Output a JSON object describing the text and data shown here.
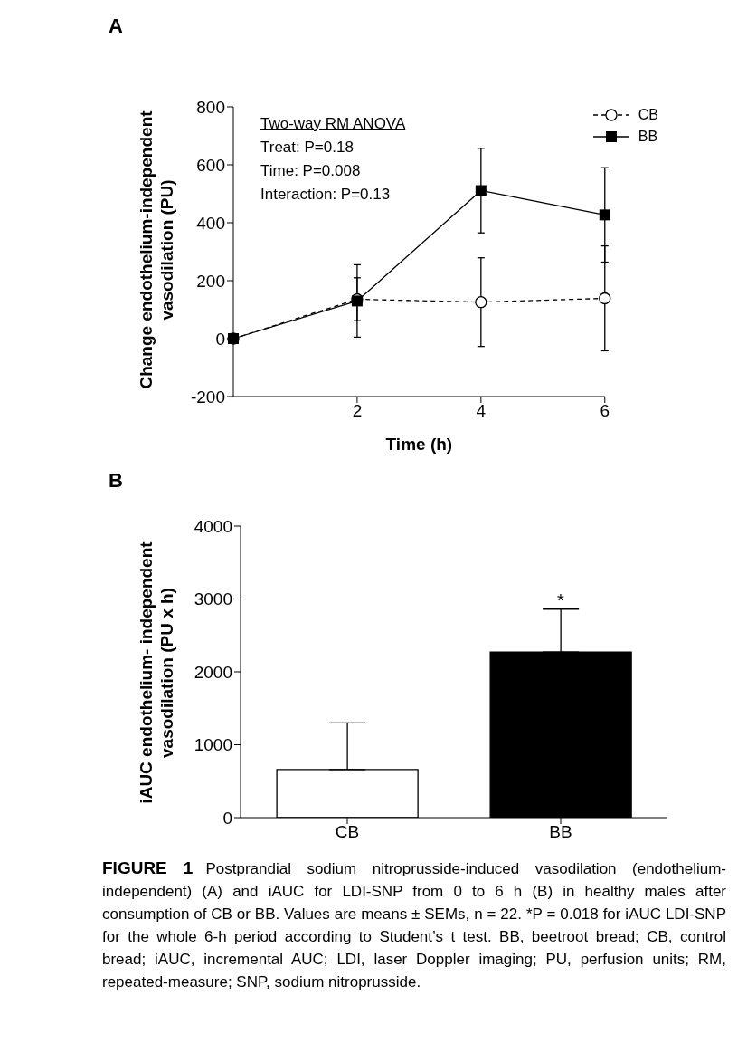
{
  "chart_data": [
    {
      "type": "line",
      "xlabel": "Time (h)",
      "ylabel": "Change endothelium-independent vasodilation (PU)",
      "x": [
        0,
        2,
        4,
        6
      ],
      "xlim": [
        0,
        6
      ],
      "xticks": [
        2,
        4,
        6
      ],
      "ylim": [
        -200,
        800
      ],
      "yticks": [
        -200,
        0,
        200,
        400,
        600,
        800
      ],
      "legend": "top right",
      "annotations": [
        "A",
        "Two-way RM ANOVA",
        "Treat: P=0.18",
        "Time: P=0.008",
        "Interaction: P=0.13"
      ],
      "series": [
        {
          "name": "CB",
          "color": "#000000",
          "marker": "circle",
          "line_style": "dashed",
          "values": [
            0,
            136,
            126,
            139
          ],
          "errors": [
            null,
            74,
            153,
            181
          ]
        },
        {
          "name": "BB",
          "color": "#000000",
          "marker": "square",
          "line_style": "solid",
          "values": [
            0,
            130,
            511,
            427
          ],
          "errors": [
            null,
            125,
            146,
            163
          ]
        }
      ]
    },
    {
      "type": "bar",
      "ylabel": "iAUC endothelium- independent vasodilation (PU x h)",
      "categories": [
        "CB",
        "BB"
      ],
      "values": [
        660,
        2270
      ],
      "colors": [
        "#ffffff",
        "#000000"
      ],
      "errors": [
        [
          660,
          1300
        ],
        [
          2270,
          2860
        ]
      ],
      "ylim": [
        0,
        4000
      ],
      "yticks": [
        0,
        1000,
        2000,
        3000,
        4000
      ],
      "annotations": [
        "B",
        {
          "text": "*",
          "x": "BB",
          "y": 2860
        },
        "FIGURE 1",
        "Postprandial sodium nitroprusside-induced vasodilation (endothelium-independent) (A) and iAUC for LDI-SNP from 0 to 6 h (B) in healthy males after consumption of CB or BB. Values are means ± SEMs, n = 22. *P = 0.018 for iAUC LDI-SNP for the whole 6-h period according to Student’s t test. BB, beetroot bread; CB, control bread; iAUC, incremental AUC; LDI, laser Doppler imaging; PU, perfusion units; RM, repeated-measure; SNP, sodium nitroprusside."
      ]
    }
  ]
}
